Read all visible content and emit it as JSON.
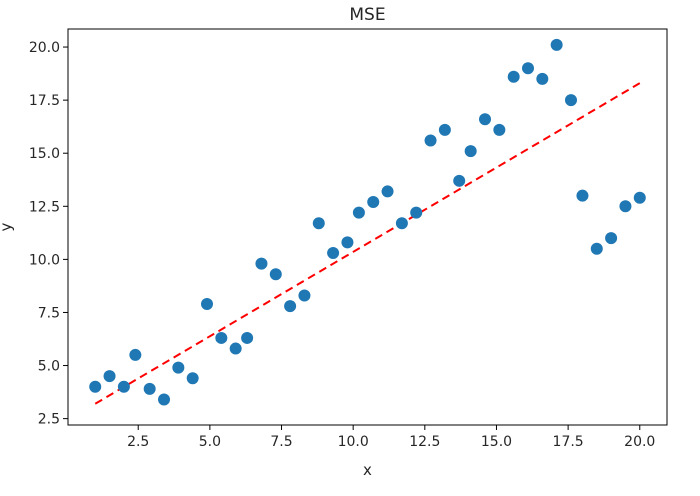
{
  "chart_data": {
    "type": "scatter",
    "title": "MSE",
    "xlabel": "x",
    "ylabel": "y",
    "xlim": [
      0.05,
      20.95
    ],
    "ylim": [
      2.2,
      20.85
    ],
    "grid": false,
    "legend": "none",
    "xticks": [
      2.5,
      5.0,
      7.5,
      10.0,
      12.5,
      15.0,
      17.5,
      20.0
    ],
    "xtick_labels": [
      "2.5",
      "5.0",
      "7.5",
      "10.0",
      "12.5",
      "15.0",
      "17.5",
      "20.0"
    ],
    "yticks": [
      2.5,
      5.0,
      7.5,
      10.0,
      12.5,
      15.0,
      17.5,
      20.0
    ],
    "ytick_labels": [
      "2.5",
      "5.0",
      "7.5",
      "10.0",
      "12.5",
      "15.0",
      "17.5",
      "20.0"
    ],
    "series": [
      {
        "kind": "scatter",
        "color": "#1f77b4",
        "x": [
          1.0,
          1.5,
          2.0,
          2.4,
          2.9,
          3.4,
          3.9,
          4.4,
          4.9,
          5.4,
          5.9,
          6.3,
          6.8,
          7.3,
          7.8,
          8.3,
          8.8,
          9.3,
          9.8,
          10.2,
          10.7,
          11.2,
          11.7,
          12.2,
          12.7,
          13.2,
          13.7,
          14.1,
          14.6,
          15.1,
          15.6,
          16.1,
          16.6,
          17.1,
          17.6,
          18.0,
          18.5,
          19.0,
          19.5,
          20.0
        ],
        "y": [
          4.0,
          4.5,
          4.0,
          5.5,
          3.9,
          3.4,
          4.9,
          4.4,
          7.9,
          6.3,
          5.8,
          6.3,
          9.8,
          9.3,
          7.8,
          8.3,
          11.7,
          10.3,
          10.8,
          12.2,
          12.7,
          13.2,
          11.7,
          12.2,
          15.6,
          16.1,
          13.7,
          15.1,
          16.6,
          16.1,
          18.6,
          19.0,
          18.5,
          20.1,
          17.5,
          13.0,
          10.5,
          11.0,
          12.5,
          12.9
        ]
      },
      {
        "kind": "line",
        "style": "dashed",
        "color": "#ff0000",
        "x": [
          1.0,
          20.0
        ],
        "y": [
          3.2,
          18.3
        ]
      }
    ]
  }
}
